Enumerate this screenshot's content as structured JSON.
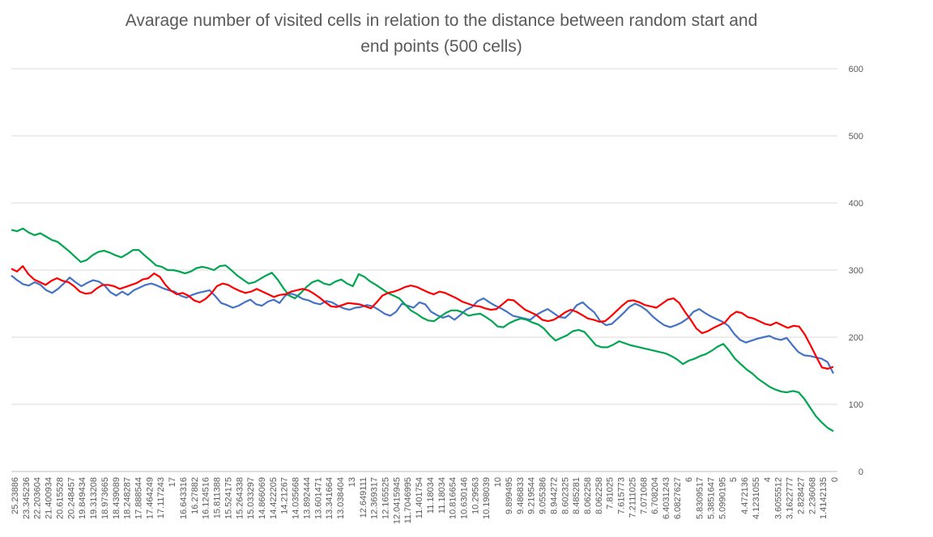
{
  "chart_data": {
    "type": "line",
    "title_line1": "Avarage number of visited cells in relation to the distance between random start and",
    "title_line2": "end points (500 cells)",
    "xlabel": "",
    "ylabel": "",
    "ylim": [
      0,
      600
    ],
    "y_ticks": [
      "0",
      "100",
      "200",
      "300",
      "400",
      "500",
      "600"
    ],
    "y_axis_side": "right",
    "grid": true,
    "legend": "none",
    "x_tick_labels": [
      "25.23886",
      "23.345236",
      "22.203604",
      "21.400934",
      "20.615528",
      "20.248457",
      "19.849434",
      "19.313208",
      "18.973665",
      "18.439089",
      "18.248287",
      "17.888544",
      "17.464249",
      "17.117243",
      "17",
      "16.643316",
      "16.27882",
      "16.124516",
      "15.811388",
      "15.524175",
      "15.264338",
      "15.033297",
      "14.866069",
      "14.422205",
      "14.21267",
      "14.035668",
      "13.892444",
      "13.601471",
      "13.341664",
      "13.038404",
      "13",
      "12.649111",
      "12.369317",
      "12.165525",
      "12.0415945",
      "11.7046995",
      "11.401754",
      "11.18034",
      "11.18034",
      "10.816654",
      "10.630146",
      "10.29563",
      "10.198039",
      "10",
      "9.899495",
      "9.486833",
      "9.219544",
      "9.055386",
      "8.944272",
      "8.602325",
      "8.485281",
      "8.062258",
      "8.062258",
      "7.81025",
      "7.615773",
      "7.2111025",
      "7.071068",
      "6.708204",
      "6.4031243",
      "6.0827627",
      "6",
      "5.8309517",
      "5.3851647",
      "5.0990195",
      "5",
      "4.472136",
      "4.1231055",
      "4",
      "3.6055512",
      "3.1622777",
      "2.828427",
      "2.236068",
      "1.4142135",
      "0"
    ],
    "series": [
      {
        "color": "#4472C4",
        "values": [
          292,
          285,
          279,
          277,
          282,
          278,
          270,
          266,
          272,
          280,
          289,
          282,
          276,
          281,
          285,
          283,
          277,
          267,
          262,
          268,
          263,
          270,
          274,
          278,
          280,
          277,
          273,
          270,
          268,
          262,
          259,
          263,
          266,
          268,
          270,
          261,
          251,
          248,
          244,
          247,
          252,
          256,
          249,
          247,
          253,
          256,
          251,
          262,
          265,
          262,
          257,
          255,
          251,
          249,
          254,
          252,
          247,
          243,
          241,
          244,
          245,
          248,
          246,
          241,
          235,
          232,
          238,
          250,
          247,
          244,
          252,
          249,
          238,
          233,
          229,
          232,
          226,
          233,
          241,
          245,
          254,
          258,
          252,
          247,
          243,
          238,
          232,
          230,
          228,
          226,
          233,
          238,
          242,
          236,
          230,
          229,
          237,
          248,
          252,
          244,
          237,
          224,
          218,
          220,
          228,
          236,
          245,
          250,
          246,
          240,
          231,
          224,
          218,
          215,
          218,
          222,
          228,
          238,
          242,
          236,
          231,
          227,
          223,
          217,
          205,
          196,
          192,
          195,
          198,
          200,
          202,
          198,
          196,
          199,
          188,
          178,
          173,
          172,
          170,
          168,
          163,
          146
        ]
      },
      {
        "color": "#00A650",
        "values": [
          360,
          358,
          362,
          356,
          352,
          355,
          350,
          345,
          342,
          335,
          328,
          320,
          312,
          315,
          322,
          327,
          329,
          326,
          322,
          319,
          324,
          330,
          330,
          322,
          315,
          307,
          305,
          300,
          300,
          298,
          295,
          298,
          303,
          305,
          303,
          300,
          306,
          307,
          300,
          292,
          286,
          280,
          282,
          287,
          292,
          296,
          286,
          273,
          262,
          258,
          266,
          275,
          282,
          285,
          280,
          278,
          283,
          286,
          280,
          276,
          294,
          290,
          283,
          278,
          272,
          266,
          262,
          258,
          249,
          240,
          235,
          229,
          225,
          224,
          230,
          236,
          240,
          240,
          237,
          232,
          234,
          235,
          230,
          224,
          216,
          215,
          221,
          225,
          228,
          226,
          222,
          219,
          213,
          203,
          195,
          199,
          203,
          209,
          211,
          208,
          198,
          188,
          185,
          185,
          189,
          194,
          191,
          188,
          186,
          184,
          182,
          180,
          178,
          176,
          172,
          167,
          160,
          165,
          168,
          172,
          175,
          180,
          186,
          190,
          180,
          168,
          160,
          152,
          146,
          138,
          132,
          126,
          122,
          119,
          118,
          120,
          118,
          108,
          95,
          82,
          73,
          65,
          60
        ]
      },
      {
        "color": "#FF0000",
        "values": [
          302,
          298,
          306,
          294,
          286,
          282,
          278,
          284,
          288,
          284,
          282,
          276,
          268,
          265,
          266,
          273,
          278,
          278,
          276,
          272,
          275,
          278,
          281,
          286,
          288,
          295,
          290,
          278,
          269,
          264,
          266,
          262,
          255,
          252,
          257,
          265,
          276,
          280,
          278,
          273,
          269,
          266,
          268,
          272,
          268,
          264,
          260,
          263,
          264,
          268,
          270,
          272,
          270,
          265,
          259,
          252,
          246,
          245,
          248,
          251,
          250,
          249,
          246,
          243,
          252,
          262,
          266,
          268,
          271,
          275,
          277,
          275,
          271,
          267,
          264,
          268,
          266,
          262,
          258,
          253,
          250,
          247,
          246,
          243,
          241,
          242,
          249,
          256,
          255,
          248,
          241,
          237,
          233,
          226,
          224,
          226,
          231,
          237,
          241,
          238,
          233,
          228,
          226,
          223,
          224,
          231,
          239,
          247,
          254,
          255,
          252,
          248,
          246,
          244,
          250,
          256,
          258,
          251,
          238,
          226,
          213,
          206,
          209,
          214,
          218,
          222,
          232,
          238,
          236,
          230,
          228,
          224,
          220,
          218,
          222,
          218,
          214,
          217,
          216,
          204,
          188,
          171,
          155,
          153,
          156
        ]
      }
    ]
  }
}
